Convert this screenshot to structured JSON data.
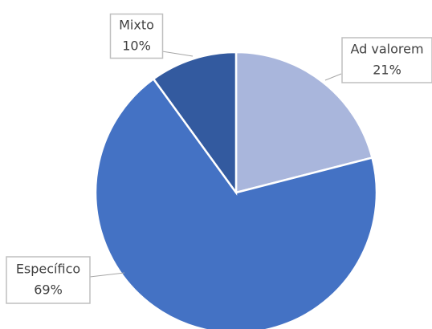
{
  "chart_data": {
    "type": "pie",
    "categories": [
      "Ad valorem",
      "Específico",
      "Mixto"
    ],
    "values": [
      21,
      69,
      10
    ],
    "value_labels": [
      "21%",
      "69%",
      "10%"
    ],
    "colors": [
      "#a9b6dc",
      "#4472c4",
      "#335a9f"
    ]
  }
}
